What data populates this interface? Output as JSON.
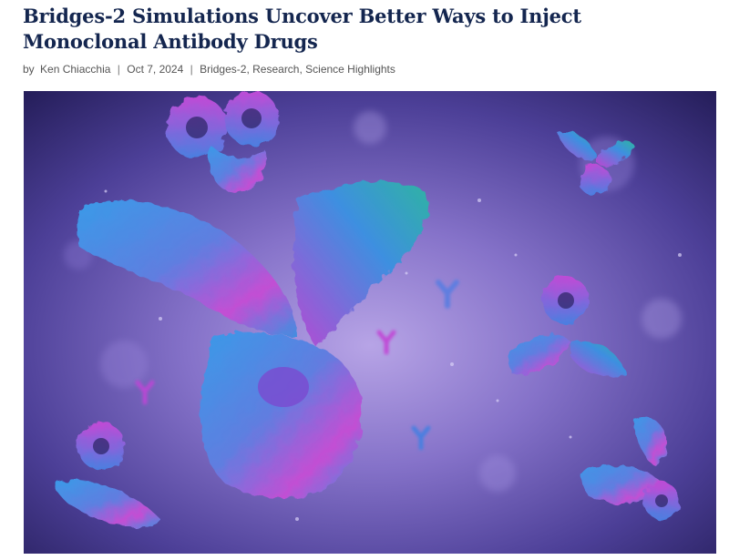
{
  "article": {
    "title": "Bridges-2 Simulations Uncover Better Ways to Inject Monoclonal Antibody Drugs",
    "meta": {
      "by_prefix": "by",
      "author": "Ken Chiacchia",
      "separator": "|",
      "date": "Oct 7, 2024",
      "categories": [
        "Bridges-2",
        "Research",
        "Science Highlights"
      ],
      "category_separator": ", "
    }
  },
  "hero_image": {
    "subject": "3D rendering of monoclonal antibody molecules",
    "colors": {
      "background_dark": "#2a2261",
      "background_light": "#a58fd9",
      "antibody_blue": "#3f8fe0",
      "antibody_magenta": "#c04bd6",
      "antibody_teal": "#2fb3a3"
    }
  }
}
